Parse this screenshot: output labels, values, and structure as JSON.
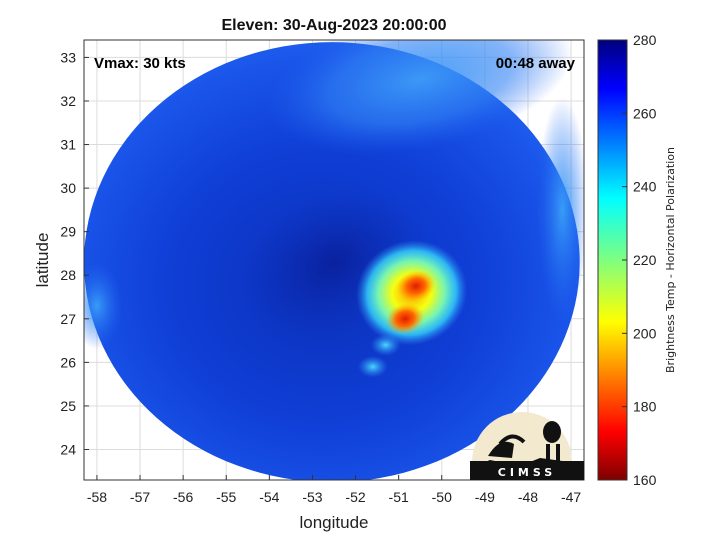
{
  "chart_data": {
    "type": "heatmap",
    "title": "Eleven: 30-Aug-2023 20:00:00",
    "xlabel": "longitude",
    "ylabel": "latitude",
    "xlim": [
      -58.3,
      -46.7
    ],
    "ylim": [
      23.3,
      33.4
    ],
    "xticks": [
      -58,
      -57,
      -56,
      -55,
      -54,
      -53,
      -52,
      -51,
      -50,
      -49,
      -48,
      -47
    ],
    "yticks": [
      24,
      25,
      26,
      27,
      28,
      29,
      30,
      31,
      32,
      33
    ],
    "grid": true,
    "swath": {
      "center_lon": -52.55,
      "center_lat": 28.3,
      "lon_radius": 5.75,
      "lat_radius": 5.05
    },
    "colorbar": {
      "label": "Brightness Temp - Horizontal Polarization",
      "min": 160,
      "max": 280,
      "ticks": [
        160,
        180,
        200,
        220,
        240,
        260,
        280
      ],
      "colormap": "jet"
    },
    "features": [
      {
        "kind": "background",
        "lon": -52.5,
        "lat": 28.3,
        "value": 262
      },
      {
        "kind": "dry-band-north",
        "lon": -50.5,
        "lat": 32.5,
        "value": 246
      },
      {
        "kind": "dry-edge-west",
        "lon": -58.0,
        "lat": 27.3,
        "value": 244
      },
      {
        "kind": "dry-edge-east",
        "lon": -47.2,
        "lat": 29.5,
        "value": 248
      },
      {
        "kind": "convection-core",
        "lon": -50.6,
        "lat": 27.75,
        "value": 192
      },
      {
        "kind": "convection-core",
        "lon": -50.85,
        "lat": 27.0,
        "value": 196
      },
      {
        "kind": "convection-ring",
        "lon": -50.7,
        "lat": 27.6,
        "value": 226
      },
      {
        "kind": "convection-speck",
        "lon": -51.3,
        "lat": 26.4,
        "value": 238
      },
      {
        "kind": "convection-speck",
        "lon": -51.6,
        "lat": 25.9,
        "value": 240
      }
    ]
  },
  "annotations": {
    "vmax": "Vmax: 30 kts",
    "away": "00:48 away"
  },
  "logo": {
    "text": "CIMSS"
  }
}
